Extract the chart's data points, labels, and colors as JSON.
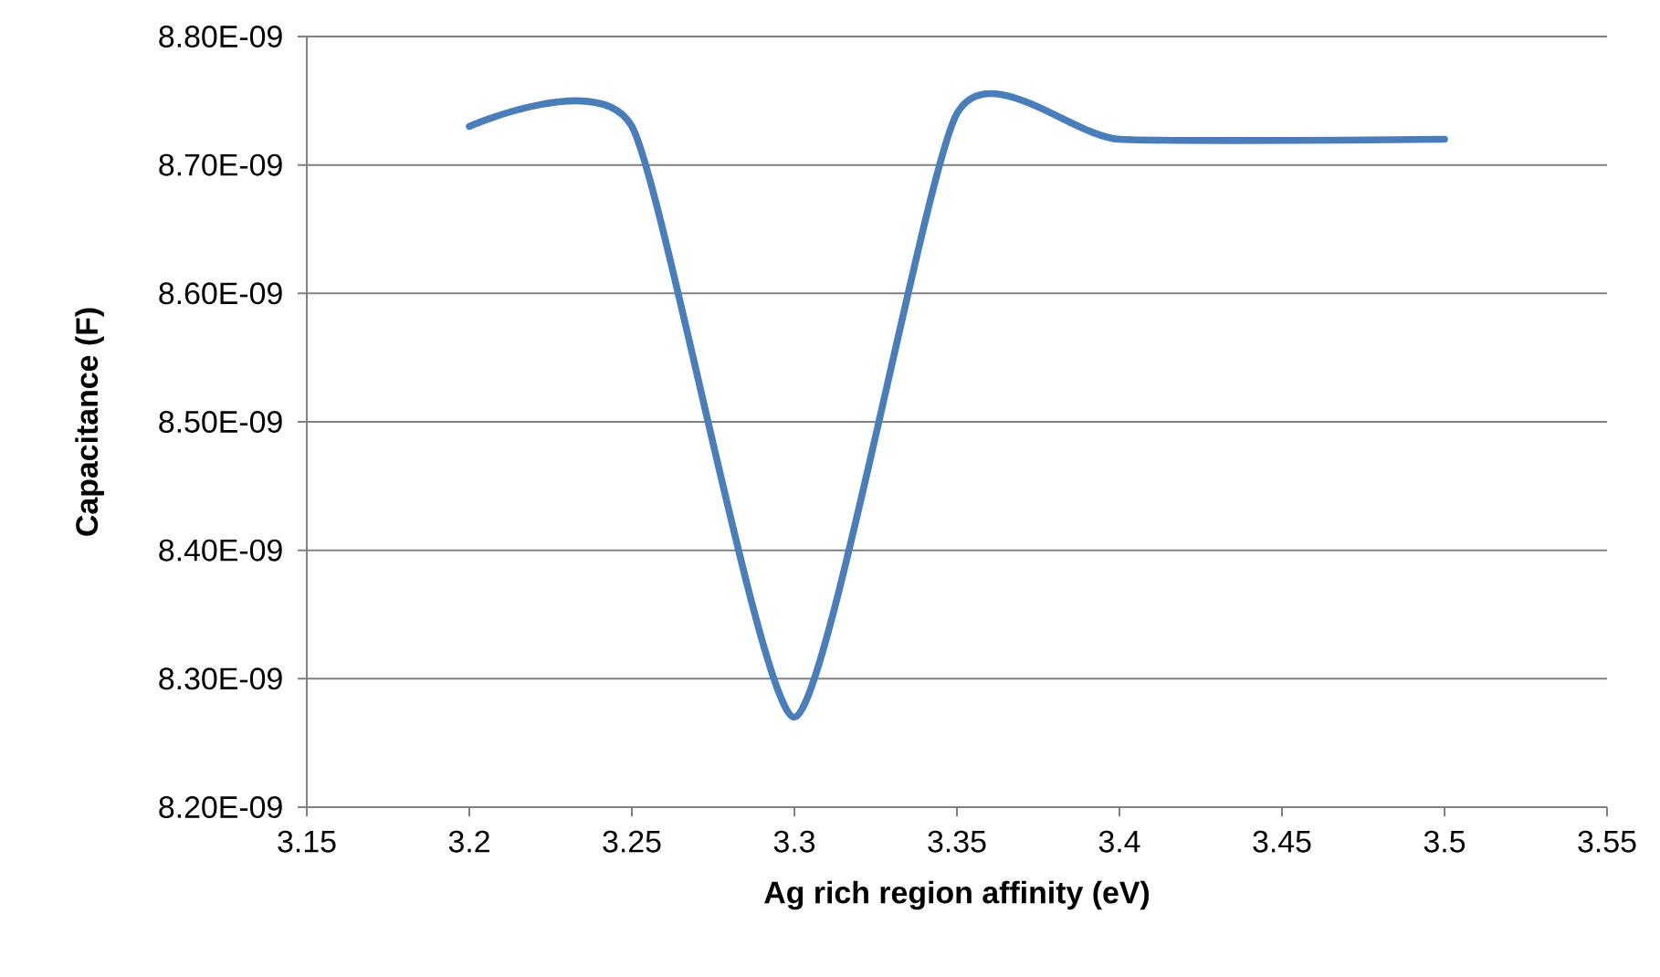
{
  "chart_data": {
    "type": "line",
    "xlabel": "Ag rich region affinity (eV)",
    "ylabel": "Capacitance (F)",
    "x": [
      3.2,
      3.25,
      3.3,
      3.35,
      3.4,
      3.5
    ],
    "series": [
      {
        "color": "#4a7ebb",
        "values": [
          8.73e-09,
          8.73e-09,
          8.27e-09,
          8.74e-09,
          8.72e-09,
          8.72e-09
        ]
      }
    ],
    "xlim": [
      3.15,
      3.55
    ],
    "xticks": [
      3.15,
      3.2,
      3.25,
      3.3,
      3.35,
      3.4,
      3.45,
      3.5,
      3.55
    ],
    "ylim": [
      8.2e-09,
      8.8e-09
    ],
    "yticks": [
      {
        "value": 8.2e-09,
        "label": "8.20E-09"
      },
      {
        "value": 8.3e-09,
        "label": "8.30E-09"
      },
      {
        "value": 8.4e-09,
        "label": "8.40E-09"
      },
      {
        "value": 8.5e-09,
        "label": "8.50E-09"
      },
      {
        "value": 8.6e-09,
        "label": "8.60E-09"
      },
      {
        "value": 8.7e-09,
        "label": "8.70E-09"
      },
      {
        "value": 8.8e-09,
        "label": "8.80E-09"
      }
    ],
    "grid": "y",
    "marker": "none",
    "line_style": "solid"
  }
}
